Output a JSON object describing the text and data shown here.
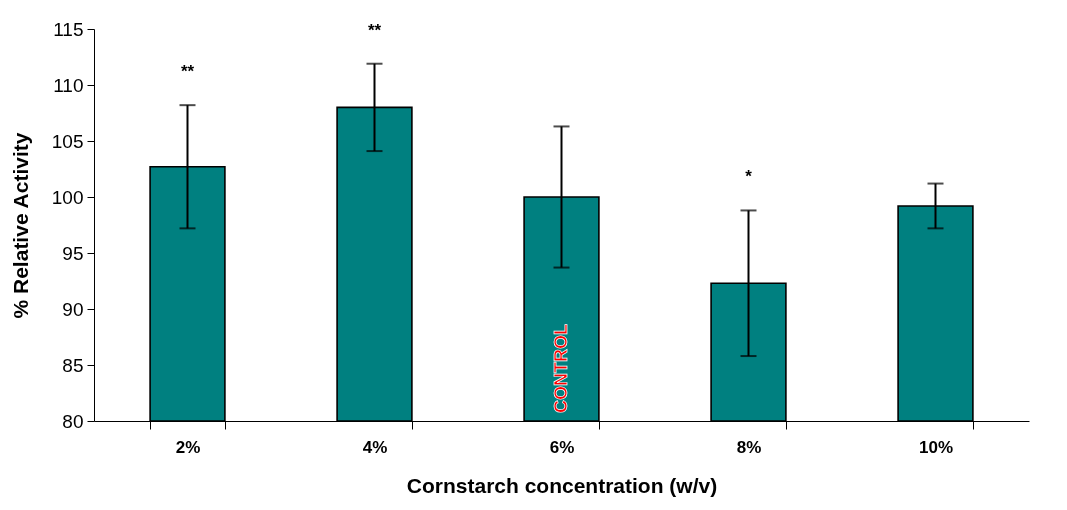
{
  "chart_data": {
    "type": "bar",
    "xlabel": "Cornstarch concentration (w/v)",
    "ylabel": "% Relative Activity",
    "categories": [
      "2%",
      "4%",
      "6%",
      "8%",
      "10%"
    ],
    "values": [
      102.7,
      108.0,
      100.0,
      92.3,
      99.2
    ],
    "errors": [
      5.5,
      3.9,
      6.3,
      6.5,
      2.0
    ],
    "color": "#008080",
    "ylim": [
      80,
      115
    ],
    "yticks": [
      80,
      85,
      90,
      95,
      100,
      105,
      110,
      115
    ],
    "grid": false,
    "annotations": [
      "**",
      "**",
      "CONTROL",
      "*"
    ]
  }
}
